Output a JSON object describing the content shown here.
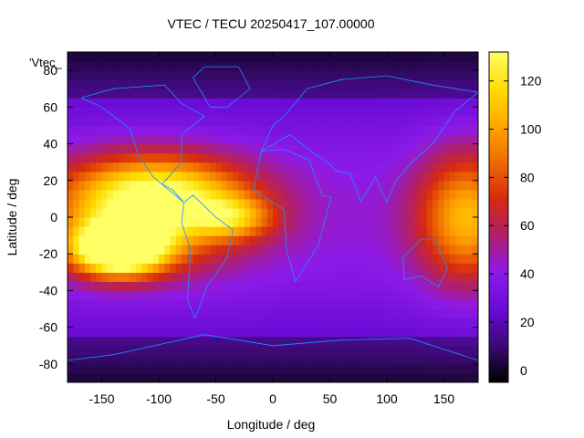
{
  "chart_data": {
    "type": "heatmap",
    "title": "VTEC / TECU 20250417_107.00000",
    "xlabel": "Longitude / deg",
    "ylabel": "Latitude / deg",
    "key_label": "'Vtec_",
    "xlim": [
      -180,
      180
    ],
    "ylim": [
      -90,
      90
    ],
    "x_ticks": [
      -150,
      -100,
      -50,
      0,
      50,
      100,
      150
    ],
    "y_ticks": [
      -80,
      -60,
      -40,
      -20,
      0,
      20,
      40,
      60,
      80
    ],
    "colorbar": {
      "range": [
        -5,
        132
      ],
      "ticks": [
        0,
        20,
        40,
        60,
        80,
        100,
        120
      ]
    },
    "palette": [
      "#000000",
      "#3b0a73",
      "#6a0bd6",
      "#8c1ae8",
      "#b01f6c",
      "#d62a10",
      "#ee6a00",
      "#ffa800",
      "#ffdd00",
      "#ffff66"
    ],
    "coastline_color": "#1e90ff",
    "grid": false,
    "hotspots": [
      {
        "lon": -135,
        "lat": -17,
        "peak": 125,
        "sigma_lon": 28,
        "sigma_lat": 10
      },
      {
        "lon": -110,
        "lat": 0,
        "peak": 60,
        "sigma_lon": 60,
        "sigma_lat": 20
      },
      {
        "lon": -100,
        "lat": 15,
        "peak": 55,
        "sigma_lon": 55,
        "sigma_lat": 14
      },
      {
        "lon": -35,
        "lat": 0,
        "peak": 45,
        "sigma_lon": 25,
        "sigma_lat": 8
      },
      {
        "lon": 170,
        "lat": 0,
        "peak": 65,
        "sigma_lon": 30,
        "sigma_lat": 25
      }
    ],
    "background_vtec": 30
  }
}
